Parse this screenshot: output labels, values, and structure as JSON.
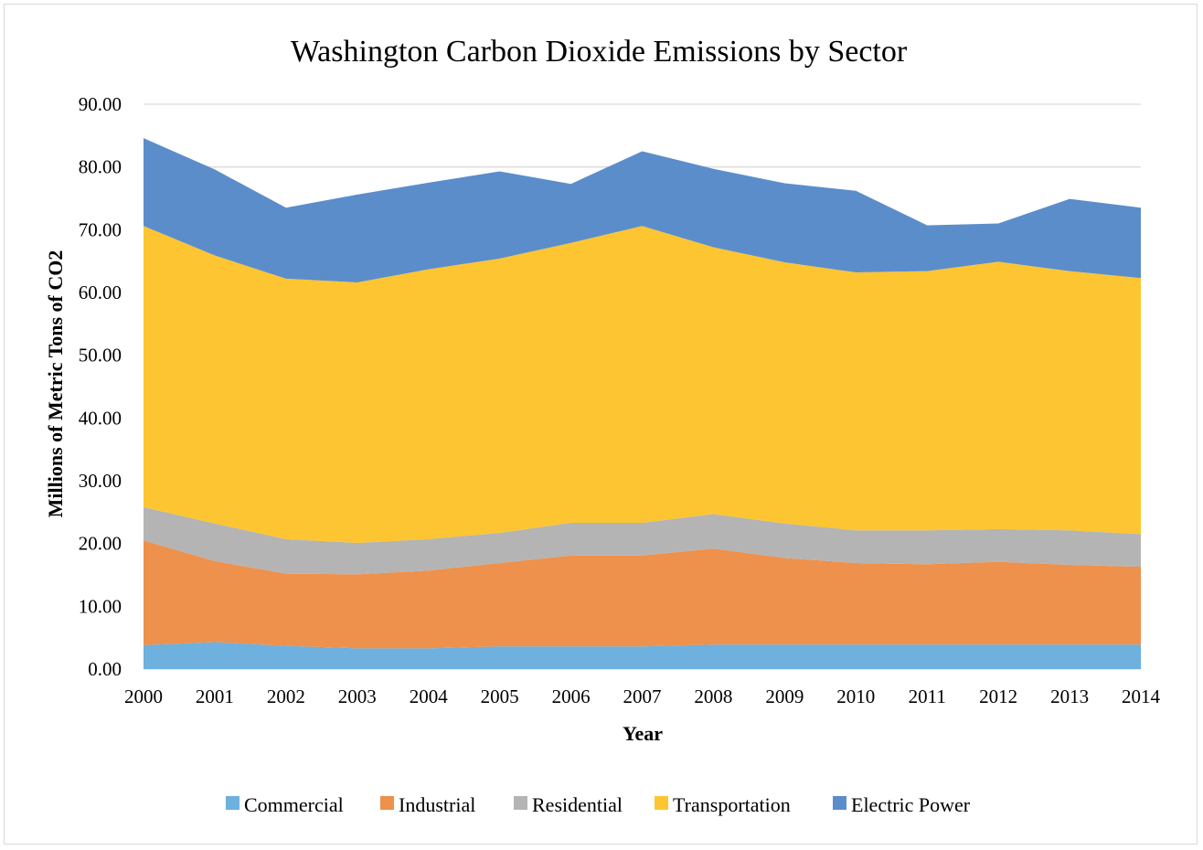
{
  "chart_data": {
    "type": "area",
    "stacked": true,
    "title": "Washington Carbon Dioxide Emissions by Sector",
    "xlabel": "Year",
    "ylabel": "Millions of Metric Tons of CO2",
    "ylim": [
      0,
      90
    ],
    "yticks": [
      "0.00",
      "10.00",
      "20.00",
      "30.00",
      "40.00",
      "50.00",
      "60.00",
      "70.00",
      "80.00",
      "90.00"
    ],
    "grid": true,
    "legend_position": "bottom",
    "categories": [
      "2000",
      "2001",
      "2002",
      "2003",
      "2004",
      "2005",
      "2006",
      "2007",
      "2008",
      "2009",
      "2010",
      "2011",
      "2012",
      "2013",
      "2014"
    ],
    "series": [
      {
        "name": "Commercial",
        "color": "#6eb0de",
        "values": [
          3.8,
          4.3,
          3.7,
          3.3,
          3.3,
          3.6,
          3.6,
          3.6,
          3.9,
          3.9,
          3.9,
          3.9,
          3.9,
          3.9,
          3.9
        ]
      },
      {
        "name": "Industrial",
        "color": "#ee914c",
        "values": [
          16.7,
          12.9,
          11.5,
          11.8,
          12.4,
          13.3,
          14.5,
          14.5,
          15.3,
          13.8,
          13.0,
          12.8,
          13.2,
          12.7,
          12.4
        ]
      },
      {
        "name": "Residential",
        "color": "#b4b4b4",
        "values": [
          5.3,
          6.0,
          5.5,
          5.0,
          5.0,
          4.8,
          5.2,
          5.2,
          5.5,
          5.5,
          5.2,
          5.4,
          5.2,
          5.5,
          5.2
        ]
      },
      {
        "name": "Transportation",
        "color": "#fdc531",
        "values": [
          44.8,
          42.7,
          41.5,
          41.5,
          43.0,
          43.7,
          44.6,
          47.3,
          42.5,
          41.6,
          41.1,
          41.3,
          42.6,
          41.3,
          40.8
        ]
      },
      {
        "name": "Electric Power",
        "color": "#5b8dcb",
        "values": [
          14.0,
          13.7,
          11.3,
          14.0,
          13.8,
          13.9,
          9.4,
          11.9,
          12.5,
          12.6,
          13.0,
          7.3,
          6.1,
          11.5,
          11.2
        ]
      }
    ]
  }
}
